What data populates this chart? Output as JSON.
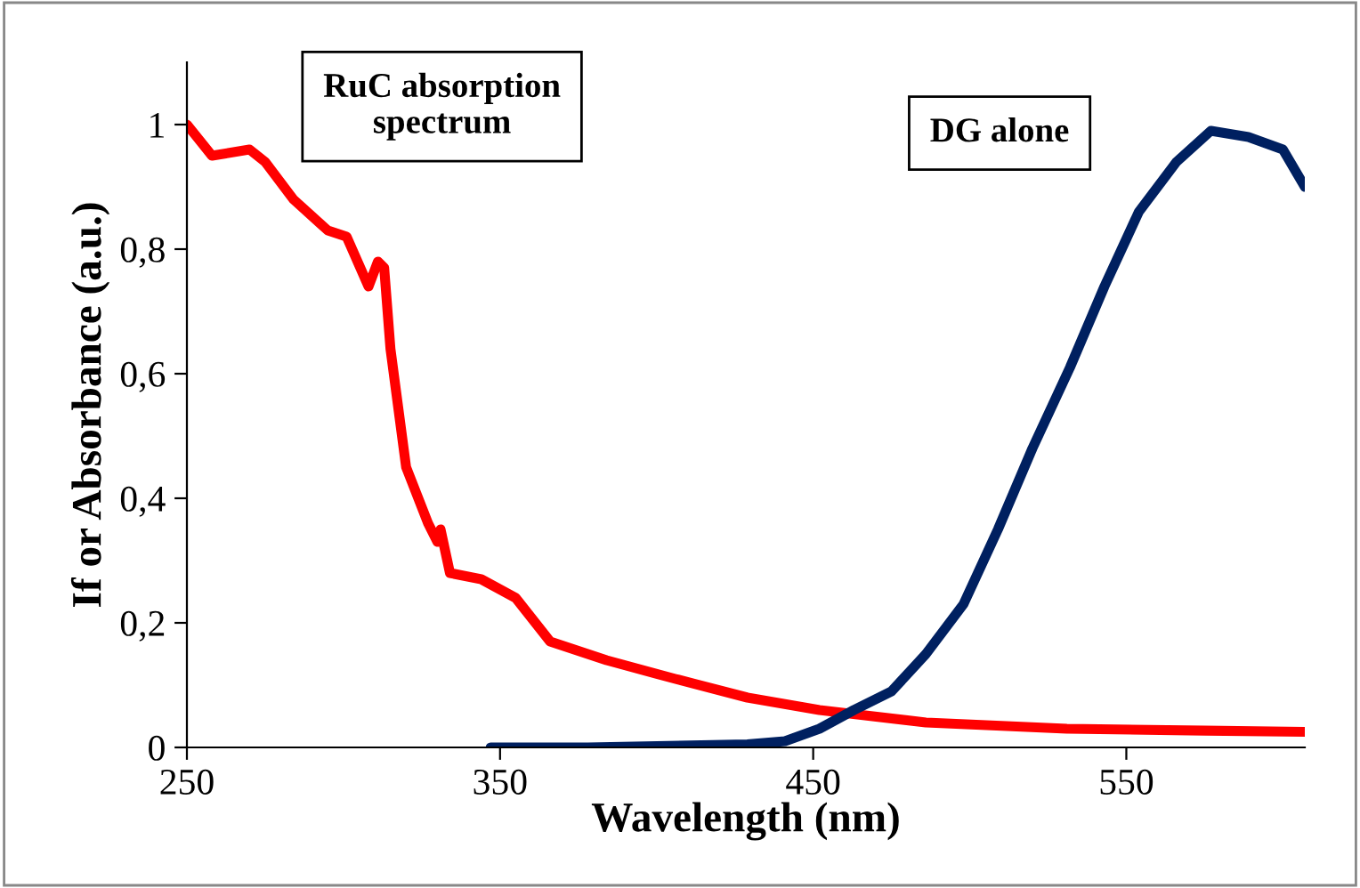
{
  "chart_data": {
    "type": "line",
    "xlabel": "Wavelength (nm)",
    "ylabel": "If or Absorbance (a.u.)",
    "xlim": [
      250,
      607
    ],
    "ylim": [
      0,
      1.1
    ],
    "xticks": [
      250,
      350,
      450,
      550
    ],
    "yticks": [
      0,
      {
        "value": 0.2,
        "label": "0,2"
      },
      {
        "value": 0.4,
        "label": "0,4"
      },
      {
        "value": 0.6,
        "label": "0,6"
      },
      {
        "value": 0.8,
        "label": "0,8"
      },
      1
    ],
    "grid": false,
    "legend": false,
    "marker": "none",
    "line_style": "solid",
    "annotations": [
      "RuC absorption spectrum",
      "DG alone"
    ],
    "series": [
      {
        "color": "#ff0000",
        "x": [
          250,
          258,
          270,
          275,
          284,
          295,
          301,
          308,
          311,
          313,
          315,
          320,
          327,
          330,
          331,
          334,
          344,
          355,
          366,
          384,
          406,
          429,
          452,
          486,
          531,
          575,
          607
        ],
        "values": [
          1.0,
          0.95,
          0.96,
          0.94,
          0.88,
          0.83,
          0.82,
          0.74,
          0.78,
          0.77,
          0.64,
          0.45,
          0.36,
          0.33,
          0.35,
          0.28,
          0.27,
          0.24,
          0.17,
          0.14,
          0.11,
          0.08,
          0.06,
          0.04,
          0.03,
          0.027,
          0.025
        ]
      },
      {
        "color": "#002060",
        "x": [
          347,
          378,
          429,
          441,
          452,
          463,
          475,
          486,
          498,
          509,
          520,
          532,
          543,
          554,
          566,
          577,
          589,
          600,
          607
        ],
        "values": [
          0,
          0,
          0.005,
          0.01,
          0.03,
          0.06,
          0.09,
          0.15,
          0.23,
          0.35,
          0.48,
          0.61,
          0.74,
          0.86,
          0.94,
          0.99,
          0.98,
          0.96,
          0.9
        ]
      }
    ]
  }
}
